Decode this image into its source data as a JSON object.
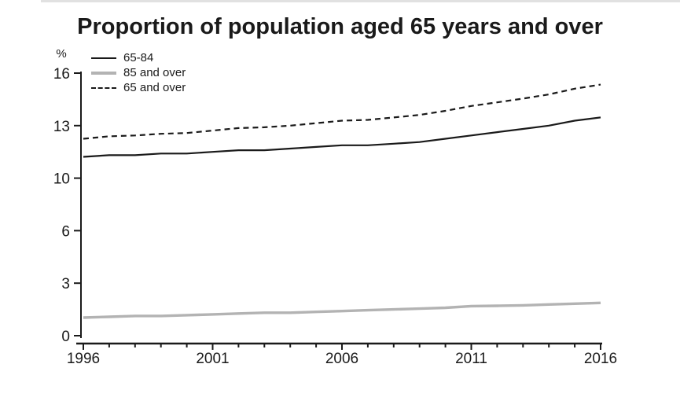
{
  "title": "Proportion of population aged 65 years and over",
  "chart_data": {
    "type": "line",
    "title": "Proportion of population aged 65 years and over",
    "xlabel": "",
    "ylabel": "%",
    "ylim": [
      0,
      16
    ],
    "grid": false,
    "legend_position": "top-left",
    "x": [
      1996,
      1997,
      1998,
      1999,
      2000,
      2001,
      2002,
      2003,
      2004,
      2005,
      2006,
      2007,
      2008,
      2009,
      2010,
      2011,
      2012,
      2013,
      2014,
      2015,
      2016
    ],
    "x_tick_labels": [
      "1996",
      "2001",
      "2006",
      "2011",
      "2016"
    ],
    "x_tick_years": [
      1996,
      2001,
      2006,
      2011,
      2016
    ],
    "y_tick_labels": [
      "0",
      "3",
      "6",
      "10",
      "13",
      "16"
    ],
    "series": [
      {
        "name": "65-84",
        "color": "#1a1a1a",
        "style": "solid",
        "width": 2.2,
        "values": [
          10.9,
          11.0,
          11.0,
          11.1,
          11.1,
          11.2,
          11.3,
          11.3,
          11.4,
          11.5,
          11.6,
          11.6,
          11.7,
          11.8,
          12.0,
          12.2,
          12.4,
          12.6,
          12.8,
          13.1,
          13.3
        ]
      },
      {
        "name": "85 and over",
        "color": "#b3b3b3",
        "style": "solid",
        "width": 3.4,
        "values": [
          1.1,
          1.15,
          1.2,
          1.2,
          1.25,
          1.3,
          1.35,
          1.4,
          1.4,
          1.45,
          1.5,
          1.55,
          1.6,
          1.65,
          1.7,
          1.8,
          1.82,
          1.85,
          1.9,
          1.95,
          2.0
        ]
      },
      {
        "name": "65 and over",
        "color": "#1a1a1a",
        "style": "dashed",
        "width": 2.2,
        "values": [
          12.0,
          12.15,
          12.2,
          12.3,
          12.35,
          12.5,
          12.65,
          12.7,
          12.8,
          12.95,
          13.1,
          13.15,
          13.3,
          13.45,
          13.7,
          14.0,
          14.22,
          14.45,
          14.7,
          15.05,
          15.3
        ]
      }
    ],
    "colors": {
      "axis": "#1a1a1a",
      "black_line": "#1a1a1a",
      "gray_line": "#b3b3b3",
      "background": "#ffffff"
    }
  }
}
